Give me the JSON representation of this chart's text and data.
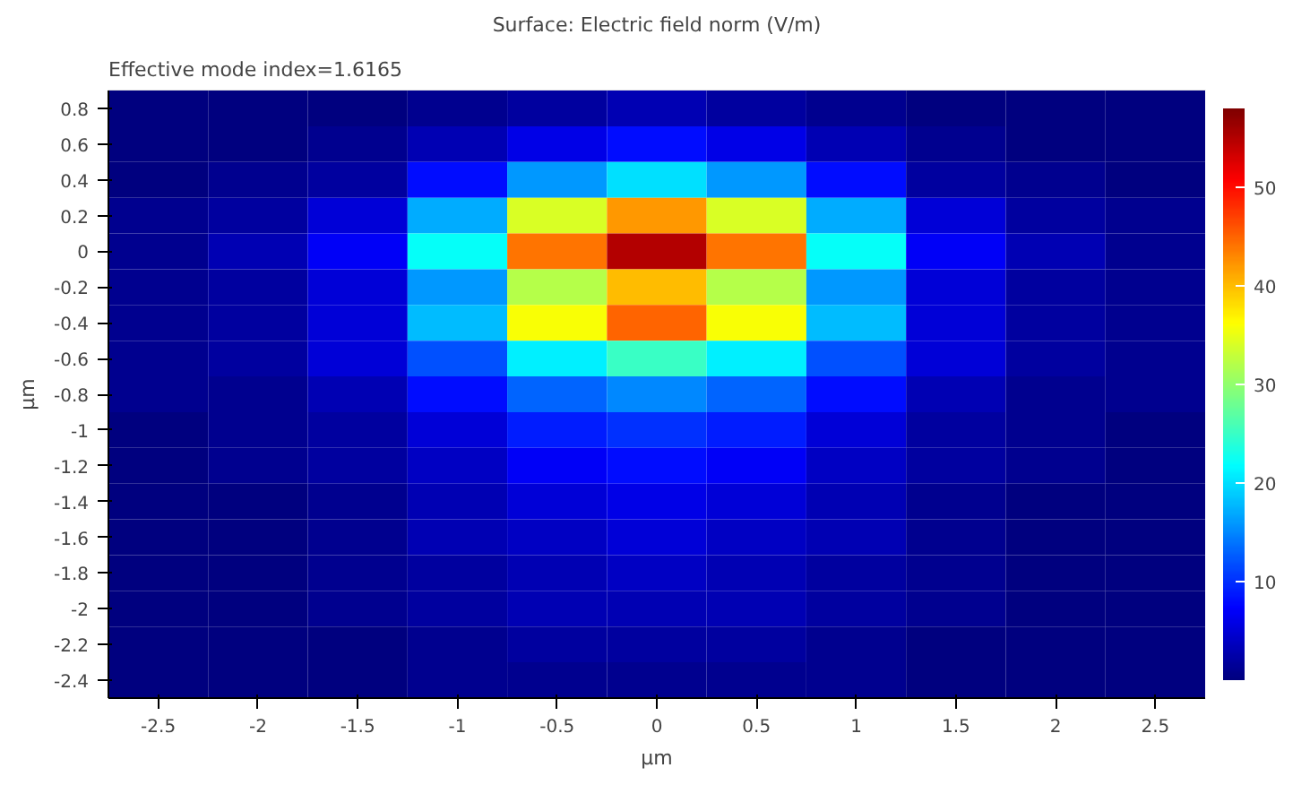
{
  "chart_data": {
    "type": "heatmap",
    "title": "Surface: Electric field norm (V/m)",
    "annotations": [
      "Effective mode index=1.6165"
    ],
    "xlabel": "µm",
    "ylabel": "µm",
    "categories": [
      "-2.5",
      "-2",
      "-1.5",
      "-1",
      "-0.5",
      "0",
      "0.5",
      "1",
      "1.5",
      "2",
      "2.5"
    ],
    "y_categories": [
      "0.8",
      "0.6",
      "0.4",
      "0.2",
      "0",
      "-0.2",
      "-0.4",
      "-0.6",
      "-0.8",
      "-1",
      "-1.2",
      "-1.4",
      "-1.6",
      "-1.8",
      "-2",
      "-2.2",
      "-2.4"
    ],
    "cells": [
      [
        0,
        0,
        0,
        1,
        2,
        3,
        2,
        1,
        0,
        0,
        0
      ],
      [
        0,
        0,
        1,
        3,
        6,
        8,
        6,
        3,
        1,
        0,
        0
      ],
      [
        0,
        1,
        2,
        8,
        16,
        20,
        16,
        8,
        2,
        1,
        0
      ],
      [
        1,
        2,
        5,
        17,
        34,
        42,
        34,
        17,
        5,
        2,
        1
      ],
      [
        1,
        3,
        7,
        22,
        44,
        55,
        44,
        22,
        7,
        3,
        1
      ],
      [
        1,
        2,
        5,
        16,
        32,
        40,
        32,
        16,
        5,
        2,
        1
      ],
      [
        1,
        2,
        5,
        18,
        36,
        45,
        36,
        18,
        5,
        2,
        1
      ],
      [
        1,
        2,
        5,
        12,
        21,
        25,
        21,
        12,
        5,
        2,
        1
      ],
      [
        1,
        1,
        3,
        8,
        13,
        15,
        13,
        8,
        3,
        1,
        1
      ],
      [
        0,
        1,
        2,
        5,
        9,
        10,
        9,
        5,
        2,
        1,
        0
      ],
      [
        0,
        1,
        2,
        4,
        7,
        8,
        7,
        4,
        2,
        1,
        0
      ],
      [
        0,
        0,
        1,
        3,
        5,
        6,
        5,
        3,
        1,
        0,
        0
      ],
      [
        0,
        0,
        1,
        3,
        4,
        5,
        4,
        3,
        1,
        0,
        0
      ],
      [
        0,
        0,
        1,
        2,
        3,
        4,
        3,
        2,
        1,
        0,
        0
      ],
      [
        0,
        0,
        1,
        2,
        3,
        3,
        3,
        2,
        1,
        0,
        0
      ],
      [
        0,
        0,
        0,
        1,
        2,
        2,
        2,
        1,
        0,
        0,
        0
      ],
      [
        0,
        0,
        0,
        1,
        1,
        1,
        1,
        1,
        0,
        0,
        0
      ]
    ],
    "clim": [
      0,
      58
    ],
    "cticks": [
      10,
      20,
      30,
      40,
      50
    ]
  }
}
